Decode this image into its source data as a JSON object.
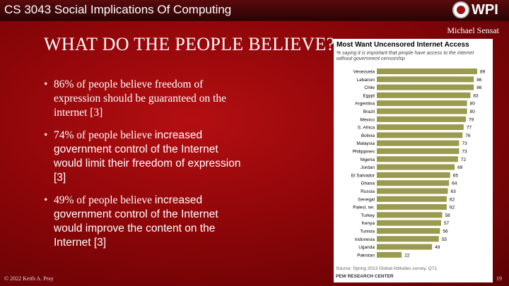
{
  "header": {
    "course_title": "CS 3043 Social Implications Of Computing",
    "logo_text": "WPI"
  },
  "slide": {
    "author": "Michael Sensat",
    "title": "WHAT DO THE PEOPLE BELIEVE?",
    "bullets": [
      {
        "serif": "86% of people believe freedom of expression should be guaranteed on the internet [3]",
        "sans": ""
      },
      {
        "serif": "74% of people believe ",
        "sans": "increased government control of the Internet would limit their freedom of expression [3]"
      },
      {
        "serif": "49% of people believe ",
        "sans": "increased government control of the Internet would improve the content on the Internet [3]"
      }
    ]
  },
  "footer": {
    "copyright": "© 2022 Keith A. Pray",
    "page_number": "19"
  },
  "colors": {
    "bar": "#9a9b4e",
    "background": "#8e0609"
  },
  "chart_data": {
    "type": "bar",
    "orientation": "horizontal",
    "title": "Most Want Uncensored Internet Access",
    "subtitle": "% saying it is important that people have access to the internet without government censorship",
    "categories": [
      "Venezuela",
      "Lebanon",
      "Chile",
      "Egypt",
      "Argentina",
      "Brazil",
      "Mexico",
      "S. Africa",
      "Bolivia",
      "Malaysia",
      "Philippines",
      "Nigeria",
      "Jordan",
      "El Salvador",
      "Ghana",
      "Russia",
      "Senegal",
      "Palest. ter.",
      "Turkey",
      "Kenya",
      "Tunisia",
      "Indonesia",
      "Uganda",
      "Pakistan"
    ],
    "values": [
      89,
      86,
      86,
      83,
      80,
      80,
      79,
      77,
      76,
      73,
      73,
      72,
      69,
      65,
      64,
      63,
      62,
      62,
      58,
      57,
      56,
      55,
      49,
      22
    ],
    "xlim": [
      0,
      89
    ],
    "source": "Source: Spring 2013 Global Attitudes survey. Q71.",
    "brand": "PEW RESEARCH CENTER"
  }
}
